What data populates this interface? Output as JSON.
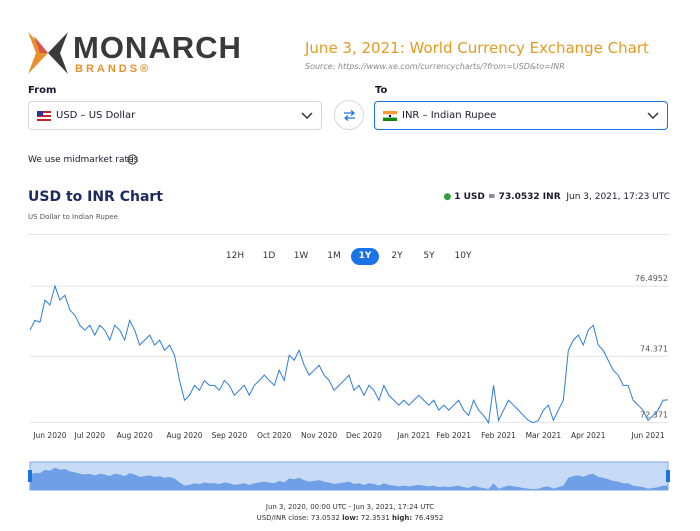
{
  "header": {
    "logo_name": "MONARCH",
    "logo_sub": "BRANDS®",
    "title": "June 3, 2021: World Currency Exchange Chart",
    "source": "Source: https://www.xe.com/currencycharts/?from=USD&to=INR"
  },
  "converter": {
    "from_label": "From",
    "from_value": "USD – US Dollar",
    "to_label": "To",
    "to_value": "INR – Indian Rupee",
    "note": "We use midmarket rates"
  },
  "rate": {
    "text": "1 USD = 73.0532 INR",
    "time": "Jun 3, 2021, 17:23 UTC"
  },
  "periods": [
    "12H",
    "1D",
    "1W",
    "1M",
    "1Y",
    "2Y",
    "5Y",
    "10Y"
  ],
  "selected_period": "1Y",
  "chart_data": {
    "type": "line",
    "title": "USD to INR Chart",
    "subtitle": "US Dollar to Indian Rupee",
    "color": "#2f7ddb",
    "xlim": [
      0,
      128
    ],
    "xticks": [
      {
        "value": 4,
        "label": "Jun 2020"
      },
      {
        "value": 12,
        "label": "Jul 2020"
      },
      {
        "value": 21,
        "label": "Aug 2020"
      },
      {
        "value": 31,
        "label": "Aug 2020"
      },
      {
        "value": 40,
        "label": "Sep 2020"
      },
      {
        "value": 49,
        "label": "Oct 2020"
      },
      {
        "value": 58,
        "label": "Nov 2020"
      },
      {
        "value": 67,
        "label": "Dec 2020"
      },
      {
        "value": 77,
        "label": "Jan 2021"
      },
      {
        "value": 85,
        "label": "Feb 2021"
      },
      {
        "value": 94,
        "label": "Feb 2021"
      },
      {
        "value": 103,
        "label": "Mar 2021"
      },
      {
        "value": 112,
        "label": "Apr 2021"
      },
      {
        "value": 124,
        "label": "Jun 2021"
      }
    ],
    "ylim": [
      72.2,
      76.8
    ],
    "yticks": [
      76.4952,
      74.371,
      72.371
    ],
    "grid": true,
    "values": [
      75.16,
      75.46,
      75.4,
      76.07,
      75.92,
      76.5,
      76.07,
      76.22,
      75.77,
      75.61,
      75.31,
      75.16,
      75.31,
      75.01,
      75.31,
      75.16,
      74.86,
      75.31,
      75.16,
      74.86,
      75.46,
      75.16,
      74.71,
      74.86,
      75.01,
      74.71,
      74.86,
      74.55,
      74.71,
      74.4,
      73.64,
      73.04,
      73.19,
      73.49,
      73.34,
      73.64,
      73.49,
      73.49,
      73.34,
      73.64,
      73.49,
      73.19,
      73.34,
      73.49,
      73.19,
      73.49,
      73.64,
      73.8,
      73.64,
      73.49,
      73.95,
      73.64,
      74.4,
      74.25,
      74.55,
      74.1,
      73.8,
      73.95,
      74.1,
      73.8,
      73.64,
      73.34,
      73.49,
      73.64,
      73.8,
      73.34,
      73.49,
      73.19,
      73.49,
      73.34,
      73.04,
      73.49,
      73.19,
      73.04,
      72.89,
      73.04,
      72.89,
      73.04,
      73.19,
      73.04,
      72.89,
      73.04,
      72.74,
      72.89,
      72.74,
      72.89,
      73.04,
      72.74,
      72.58,
      73.04,
      72.74,
      72.58,
      72.36,
      73.49,
      72.43,
      72.74,
      73.04,
      72.89,
      72.74,
      72.58,
      72.43,
      72.36,
      72.43,
      72.74,
      72.89,
      72.43,
      72.74,
      73.04,
      74.55,
      74.86,
      75.01,
      74.71,
      75.16,
      75.31,
      74.71,
      74.55,
      74.25,
      73.95,
      73.8,
      73.49,
      73.49,
      73.04,
      72.89,
      72.74,
      72.43,
      72.58,
      72.74,
      73.04,
      73.05
    ]
  },
  "summary": {
    "range": "Jun 3, 2020, 00:00 UTC - Jun 3, 2021, 17:24 UTC",
    "close_label": "USD/INR close:",
    "close": "73.0532",
    "low_label": "low:",
    "low": "72.3531",
    "high_label": "high:",
    "high": "76.4952"
  }
}
